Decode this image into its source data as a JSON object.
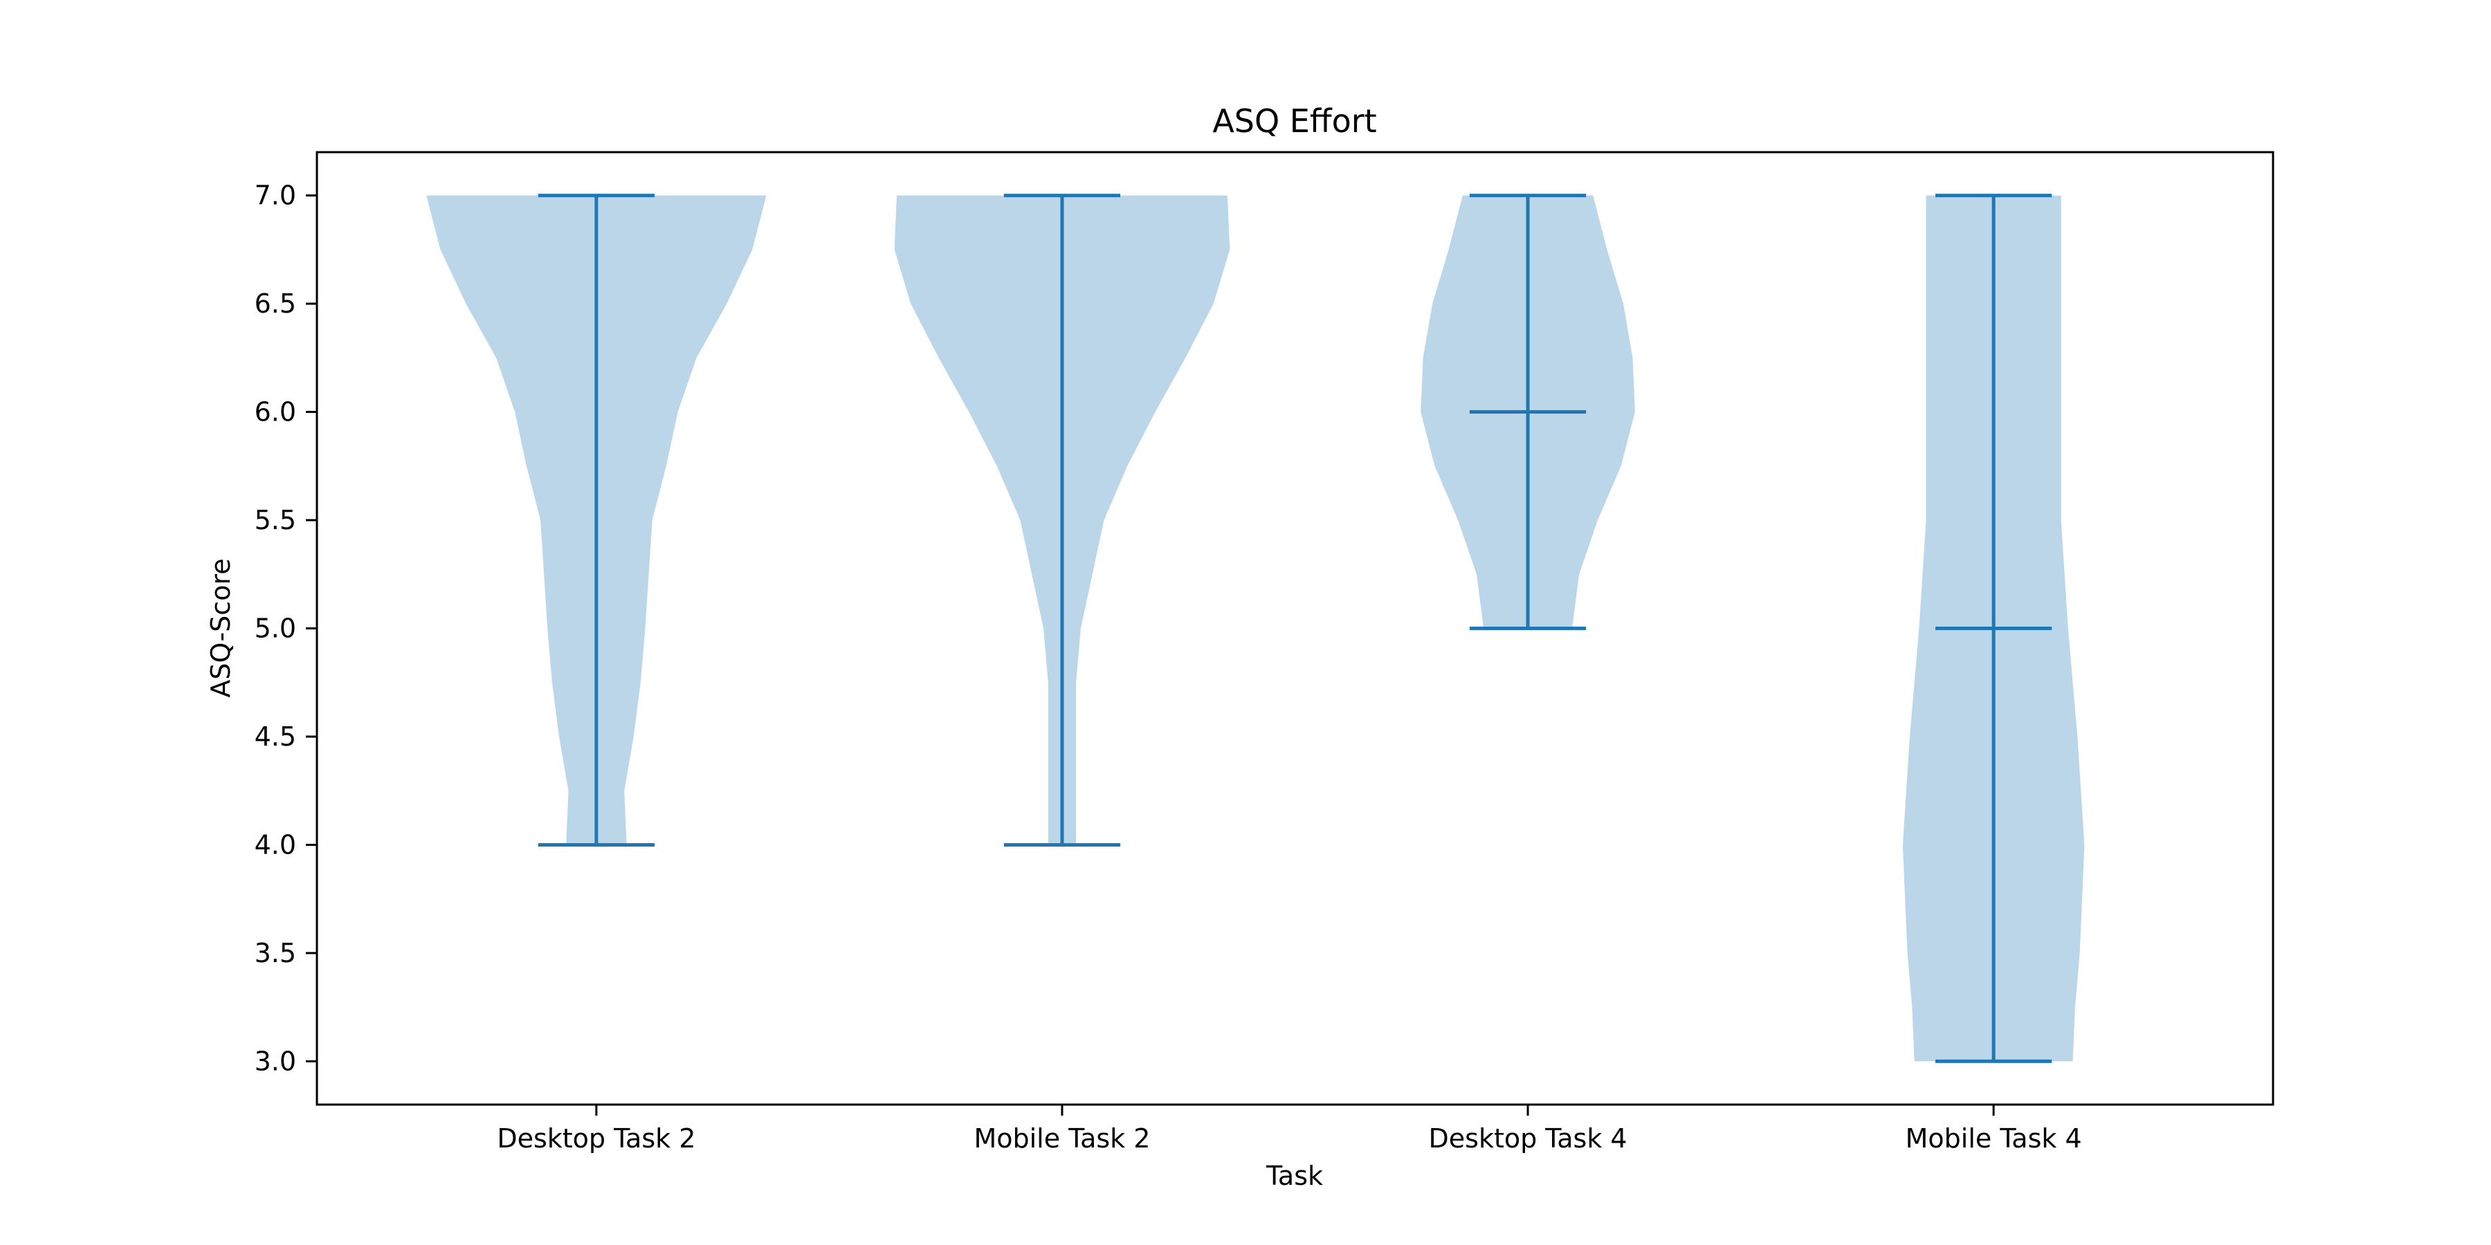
{
  "chart_data": {
    "type": "violin",
    "title": "ASQ Effort",
    "xlabel": "Task",
    "ylabel": "ASQ-Score",
    "categories": [
      "Desktop Task 2",
      "Mobile Task 2",
      "Desktop Task 4",
      "Mobile Task 4"
    ],
    "ylim": [
      2.8,
      7.2
    ],
    "yticks": [
      "3.0",
      "3.5",
      "4.0",
      "4.5",
      "5.0",
      "5.5",
      "6.0",
      "6.5",
      "7.0"
    ],
    "grid": false,
    "legend": "none",
    "colors": {
      "body": "#1f77b4",
      "body_opacity": 0.3,
      "lines": "#1f77b4",
      "axes": "#000000"
    },
    "violins": [
      {
        "category": "Desktop Task 2",
        "min": 4.0,
        "max": 7.0,
        "median": null,
        "density": [
          [
            7.0,
            0.73
          ],
          [
            6.75,
            0.67
          ],
          [
            6.5,
            0.56
          ],
          [
            6.25,
            0.43
          ],
          [
            6.0,
            0.35
          ],
          [
            5.75,
            0.3
          ],
          [
            5.5,
            0.24
          ],
          [
            5.0,
            0.21
          ],
          [
            4.75,
            0.19
          ],
          [
            4.5,
            0.16
          ],
          [
            4.25,
            0.12
          ],
          [
            4.0,
            0.13
          ]
        ]
      },
      {
        "category": "Mobile Task 2",
        "min": 4.0,
        "max": 7.0,
        "median": null,
        "density": [
          [
            7.0,
            0.71
          ],
          [
            6.75,
            0.72
          ],
          [
            6.5,
            0.65
          ],
          [
            6.25,
            0.53
          ],
          [
            6.0,
            0.4
          ],
          [
            5.75,
            0.28
          ],
          [
            5.5,
            0.18
          ],
          [
            5.0,
            0.08
          ],
          [
            4.75,
            0.06
          ],
          [
            4.5,
            0.06
          ],
          [
            4.25,
            0.06
          ],
          [
            4.0,
            0.06
          ]
        ]
      },
      {
        "category": "Desktop Task 4",
        "min": 5.0,
        "max": 7.0,
        "median": 6.0,
        "density": [
          [
            7.0,
            0.28
          ],
          [
            6.75,
            0.34
          ],
          [
            6.5,
            0.41
          ],
          [
            6.25,
            0.45
          ],
          [
            6.0,
            0.46
          ],
          [
            5.75,
            0.4
          ],
          [
            5.5,
            0.3
          ],
          [
            5.25,
            0.22
          ],
          [
            5.0,
            0.19
          ]
        ]
      },
      {
        "category": "Mobile Task 4",
        "min": 3.0,
        "max": 7.0,
        "median": 5.0,
        "density": [
          [
            7.0,
            0.29
          ],
          [
            6.5,
            0.29
          ],
          [
            6.0,
            0.29
          ],
          [
            5.5,
            0.29
          ],
          [
            5.0,
            0.32
          ],
          [
            4.5,
            0.36
          ],
          [
            4.0,
            0.39
          ],
          [
            3.5,
            0.37
          ],
          [
            3.25,
            0.35
          ],
          [
            3.0,
            0.34
          ]
        ]
      }
    ]
  }
}
